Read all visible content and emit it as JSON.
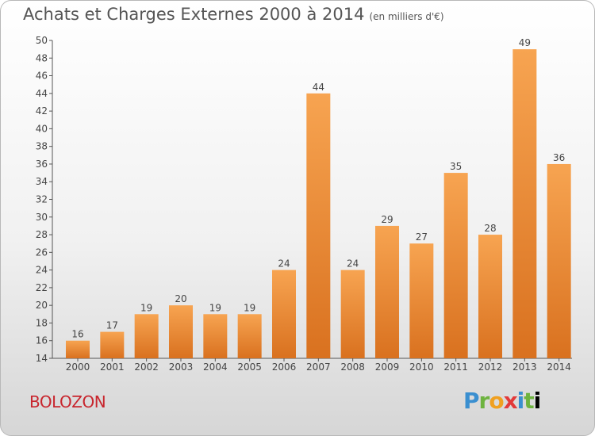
{
  "header": {
    "title": "Achats et Charges Externes 2000 à 2014",
    "unit": "(en milliers d'€)"
  },
  "footer": {
    "commune": "BOLOZON",
    "logo": "Proxiti"
  },
  "colors": {
    "bar_light": "#f7a451",
    "bar_dark": "#d9711f",
    "commune_text": "#c8262e",
    "title_text": "#555555"
  },
  "chart_data": {
    "type": "bar",
    "title": "Achats et Charges Externes 2000 à 2014",
    "subtitle": "(en milliers d'€)",
    "categories": [
      "2000",
      "2001",
      "2002",
      "2003",
      "2004",
      "2005",
      "2006",
      "2007",
      "2008",
      "2009",
      "2010",
      "2011",
      "2012",
      "2013",
      "2014"
    ],
    "values": [
      16,
      17,
      19,
      20,
      19,
      19,
      24,
      44,
      24,
      29,
      27,
      35,
      28,
      49,
      36
    ],
    "ylim": [
      14,
      50
    ],
    "yticks": [
      14,
      16,
      18,
      20,
      22,
      24,
      26,
      28,
      30,
      32,
      34,
      36,
      38,
      40,
      42,
      44,
      46,
      48,
      50
    ],
    "grid": false,
    "data_labels": true
  }
}
